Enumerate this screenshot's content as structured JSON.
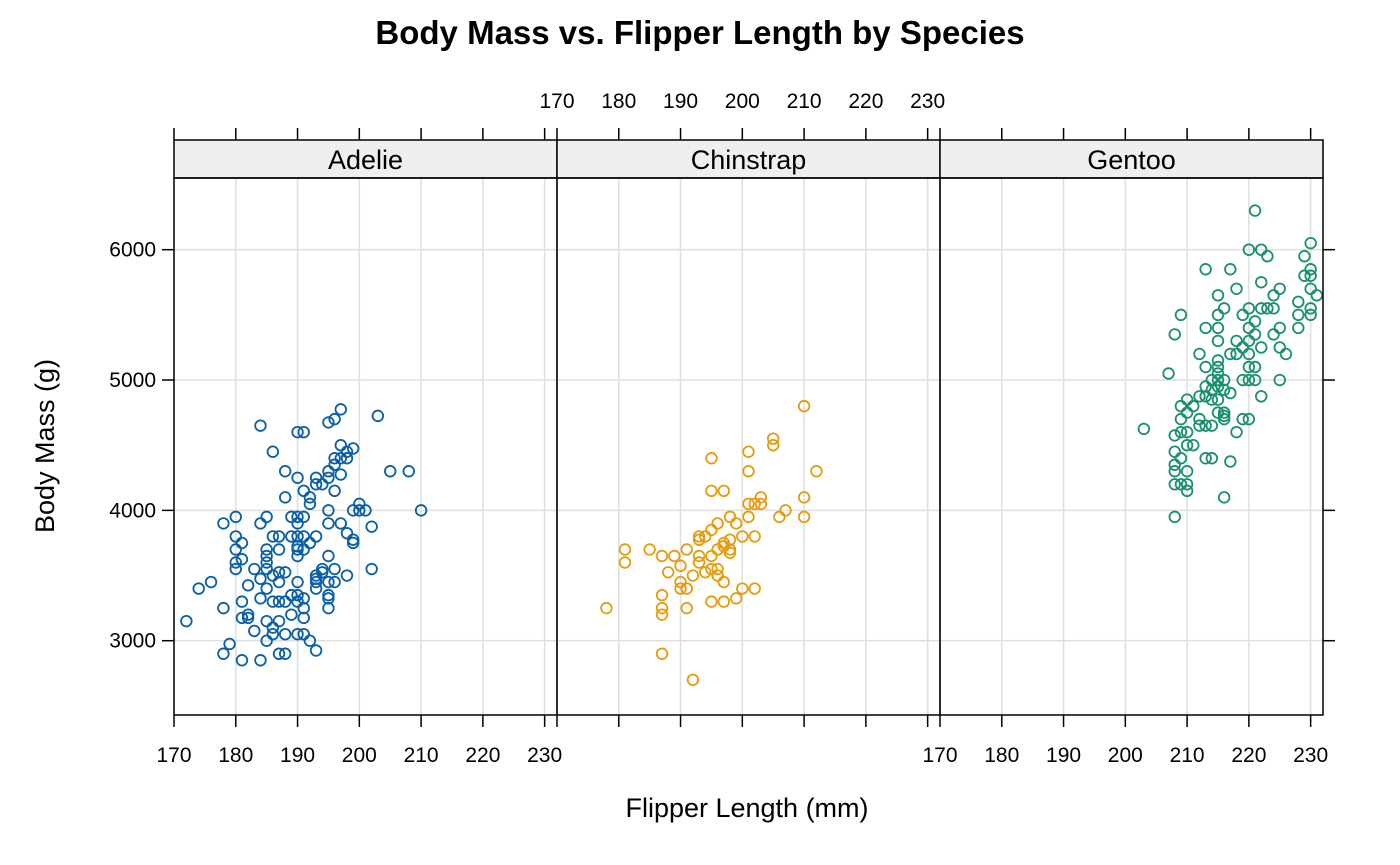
{
  "chart_data": {
    "type": "scatter",
    "title": "Body Mass vs. Flipper Length by Species",
    "xlabel": "Flipper Length (mm)",
    "ylabel": "Body Mass (g)",
    "xlim": [
      170,
      232
    ],
    "ylim": [
      2430,
      6550
    ],
    "x_ticks": [
      170,
      180,
      190,
      200,
      210,
      220,
      230
    ],
    "y_ticks": [
      3000,
      4000,
      5000,
      6000
    ],
    "grid": true,
    "panels": [
      {
        "name": "Adelie",
        "color": "#0a5fa6",
        "points": [
          [
            172,
            3150
          ],
          [
            174,
            3400
          ],
          [
            176,
            3450
          ],
          [
            178,
            3250
          ],
          [
            178,
            2900
          ],
          [
            178,
            3900
          ],
          [
            179,
            2975
          ],
          [
            180,
            3950
          ],
          [
            180,
            3800
          ],
          [
            180,
            3700
          ],
          [
            180,
            3600
          ],
          [
            180,
            3550
          ],
          [
            181,
            3625
          ],
          [
            181,
            3750
          ],
          [
            181,
            3175
          ],
          [
            181,
            3300
          ],
          [
            181,
            2850
          ],
          [
            182,
            3200
          ],
          [
            182,
            3175
          ],
          [
            182,
            3425
          ],
          [
            183,
            3075
          ],
          [
            183,
            3550
          ],
          [
            184,
            4650
          ],
          [
            184,
            3900
          ],
          [
            184,
            3475
          ],
          [
            184,
            3325
          ],
          [
            184,
            2850
          ],
          [
            185,
            3950
          ],
          [
            185,
            3700
          ],
          [
            185,
            3650
          ],
          [
            185,
            3600
          ],
          [
            185,
            3550
          ],
          [
            185,
            3400
          ],
          [
            185,
            3150
          ],
          [
            185,
            3000
          ],
          [
            186,
            4450
          ],
          [
            186,
            3800
          ],
          [
            186,
            3500
          ],
          [
            186,
            3300
          ],
          [
            186,
            3100
          ],
          [
            186,
            3050
          ],
          [
            187,
            3800
          ],
          [
            187,
            3700
          ],
          [
            187,
            3525
          ],
          [
            187,
            3450
          ],
          [
            187,
            3300
          ],
          [
            187,
            3150
          ],
          [
            187,
            2900
          ],
          [
            188,
            4300
          ],
          [
            188,
            4100
          ],
          [
            188,
            3525
          ],
          [
            188,
            3300
          ],
          [
            188,
            3050
          ],
          [
            188,
            2900
          ],
          [
            189,
            3950
          ],
          [
            189,
            3800
          ],
          [
            189,
            3350
          ],
          [
            189,
            3200
          ],
          [
            190,
            4600
          ],
          [
            190,
            4250
          ],
          [
            190,
            3950
          ],
          [
            190,
            3900
          ],
          [
            190,
            3800
          ],
          [
            190,
            3725
          ],
          [
            190,
            3700
          ],
          [
            190,
            3650
          ],
          [
            190,
            3450
          ],
          [
            190,
            3350
          ],
          [
            190,
            3300
          ],
          [
            190,
            3050
          ],
          [
            191,
            4600
          ],
          [
            191,
            4150
          ],
          [
            191,
            3950
          ],
          [
            191,
            3800
          ],
          [
            191,
            3700
          ],
          [
            191,
            3325
          ],
          [
            191,
            3250
          ],
          [
            191,
            3175
          ],
          [
            191,
            3050
          ],
          [
            192,
            4100
          ],
          [
            192,
            4050
          ],
          [
            192,
            3750
          ],
          [
            192,
            3000
          ],
          [
            193,
            4250
          ],
          [
            193,
            4200
          ],
          [
            193,
            3800
          ],
          [
            193,
            3500
          ],
          [
            193,
            3475
          ],
          [
            193,
            3450
          ],
          [
            193,
            3400
          ],
          [
            193,
            2925
          ],
          [
            194,
            4200
          ],
          [
            194,
            3550
          ],
          [
            194,
            3525
          ],
          [
            195,
            4675
          ],
          [
            195,
            4300
          ],
          [
            195,
            4250
          ],
          [
            195,
            4000
          ],
          [
            195,
            3900
          ],
          [
            195,
            3650
          ],
          [
            195,
            3450
          ],
          [
            195,
            3350
          ],
          [
            195,
            3325
          ],
          [
            195,
            3250
          ],
          [
            196,
            4700
          ],
          [
            196,
            4400
          ],
          [
            196,
            4350
          ],
          [
            196,
            4150
          ],
          [
            196,
            3550
          ],
          [
            196,
            3450
          ],
          [
            197,
            4775
          ],
          [
            197,
            4500
          ],
          [
            197,
            4400
          ],
          [
            197,
            4275
          ],
          [
            197,
            3900
          ],
          [
            198,
            4450
          ],
          [
            198,
            4400
          ],
          [
            198,
            3825
          ],
          [
            198,
            3500
          ],
          [
            199,
            4475
          ],
          [
            199,
            4000
          ],
          [
            199,
            3775
          ],
          [
            199,
            3750
          ],
          [
            200,
            4050
          ],
          [
            200,
            4000
          ],
          [
            201,
            4000
          ],
          [
            202,
            3875
          ],
          [
            202,
            3550
          ],
          [
            203,
            4725
          ],
          [
            205,
            4300
          ],
          [
            208,
            4300
          ],
          [
            210,
            4000
          ]
        ]
      },
      {
        "name": "Chinstrap",
        "color": "#e69c0d",
        "points": [
          [
            178,
            3250
          ],
          [
            181,
            3700
          ],
          [
            181,
            3600
          ],
          [
            185,
            3700
          ],
          [
            187,
            3650
          ],
          [
            187,
            3350
          ],
          [
            187,
            3250
          ],
          [
            187,
            3200
          ],
          [
            187,
            2900
          ],
          [
            188,
            3525
          ],
          [
            189,
            3650
          ],
          [
            190,
            3575
          ],
          [
            190,
            3450
          ],
          [
            190,
            3400
          ],
          [
            191,
            3700
          ],
          [
            191,
            3400
          ],
          [
            191,
            3250
          ],
          [
            192,
            3500
          ],
          [
            192,
            2700
          ],
          [
            193,
            3800
          ],
          [
            193,
            3775
          ],
          [
            193,
            3650
          ],
          [
            193,
            3600
          ],
          [
            194,
            3525
          ],
          [
            194,
            3800
          ],
          [
            195,
            4400
          ],
          [
            195,
            4150
          ],
          [
            195,
            3850
          ],
          [
            195,
            3650
          ],
          [
            195,
            3550
          ],
          [
            195,
            3300
          ],
          [
            196,
            3900
          ],
          [
            196,
            3700
          ],
          [
            196,
            3550
          ],
          [
            196,
            3500
          ],
          [
            197,
            4150
          ],
          [
            197,
            3750
          ],
          [
            197,
            3725
          ],
          [
            197,
            3450
          ],
          [
            197,
            3300
          ],
          [
            198,
            3775
          ],
          [
            198,
            3700
          ],
          [
            198,
            3675
          ],
          [
            198,
            3950
          ],
          [
            199,
            3900
          ],
          [
            199,
            3325
          ],
          [
            200,
            3800
          ],
          [
            200,
            3400
          ],
          [
            201,
            4450
          ],
          [
            201,
            4300
          ],
          [
            201,
            4050
          ],
          [
            201,
            3950
          ],
          [
            202,
            4050
          ],
          [
            202,
            3800
          ],
          [
            202,
            3400
          ],
          [
            203,
            4100
          ],
          [
            203,
            4050
          ],
          [
            205,
            4550
          ],
          [
            205,
            4500
          ],
          [
            206,
            3950
          ],
          [
            207,
            4000
          ],
          [
            210,
            4800
          ],
          [
            210,
            4100
          ],
          [
            210,
            3950
          ],
          [
            212,
            4300
          ]
        ]
      },
      {
        "name": "Gentoo",
        "color": "#1a9070",
        "points": [
          [
            203,
            4625
          ],
          [
            207,
            5050
          ],
          [
            208,
            5350
          ],
          [
            208,
            4575
          ],
          [
            208,
            4450
          ],
          [
            208,
            4350
          ],
          [
            208,
            4300
          ],
          [
            208,
            4200
          ],
          [
            208,
            3950
          ],
          [
            209,
            5500
          ],
          [
            209,
            4800
          ],
          [
            209,
            4700
          ],
          [
            209,
            4600
          ],
          [
            209,
            4400
          ],
          [
            209,
            4200
          ],
          [
            210,
            4850
          ],
          [
            210,
            4750
          ],
          [
            210,
            4600
          ],
          [
            210,
            4500
          ],
          [
            210,
            4300
          ],
          [
            210,
            4200
          ],
          [
            210,
            4150
          ],
          [
            211,
            4800
          ],
          [
            211,
            4500
          ],
          [
            212,
            5200
          ],
          [
            212,
            4875
          ],
          [
            212,
            4700
          ],
          [
            212,
            4650
          ],
          [
            213,
            5850
          ],
          [
            213,
            5400
          ],
          [
            213,
            5100
          ],
          [
            213,
            4950
          ],
          [
            213,
            4875
          ],
          [
            213,
            4650
          ],
          [
            213,
            4400
          ],
          [
            214,
            5000
          ],
          [
            214,
            4925
          ],
          [
            214,
            4850
          ],
          [
            214,
            4650
          ],
          [
            214,
            4400
          ],
          [
            215,
            5650
          ],
          [
            215,
            5500
          ],
          [
            215,
            5400
          ],
          [
            215,
            5300
          ],
          [
            215,
            5150
          ],
          [
            215,
            5100
          ],
          [
            215,
            5050
          ],
          [
            215,
            5000
          ],
          [
            215,
            4950
          ],
          [
            215,
            4850
          ],
          [
            215,
            4750
          ],
          [
            216,
            5550
          ],
          [
            216,
            5000
          ],
          [
            216,
            4925
          ],
          [
            216,
            4750
          ],
          [
            216,
            4725
          ],
          [
            216,
            4700
          ],
          [
            216,
            4100
          ],
          [
            217,
            5850
          ],
          [
            217,
            5200
          ],
          [
            217,
            4900
          ],
          [
            217,
            4375
          ],
          [
            218,
            5700
          ],
          [
            218,
            5300
          ],
          [
            218,
            5200
          ],
          [
            218,
            4600
          ],
          [
            219,
            5500
          ],
          [
            219,
            5250
          ],
          [
            219,
            5000
          ],
          [
            219,
            4700
          ],
          [
            220,
            6000
          ],
          [
            220,
            5550
          ],
          [
            220,
            5400
          ],
          [
            220,
            5300
          ],
          [
            220,
            5200
          ],
          [
            220,
            5100
          ],
          [
            220,
            5000
          ],
          [
            220,
            4700
          ],
          [
            221,
            6300
          ],
          [
            221,
            5450
          ],
          [
            221,
            5350
          ],
          [
            221,
            5100
          ],
          [
            221,
            5000
          ],
          [
            222,
            6000
          ],
          [
            222,
            5750
          ],
          [
            222,
            5550
          ],
          [
            222,
            5250
          ],
          [
            222,
            4875
          ],
          [
            223,
            5950
          ],
          [
            223,
            5550
          ],
          [
            224,
            5650
          ],
          [
            224,
            5550
          ],
          [
            224,
            5350
          ],
          [
            225,
            5700
          ],
          [
            225,
            5400
          ],
          [
            225,
            5250
          ],
          [
            225,
            5000
          ],
          [
            226,
            5200
          ],
          [
            228,
            5600
          ],
          [
            228,
            5500
          ],
          [
            228,
            5400
          ],
          [
            229,
            5950
          ],
          [
            229,
            5800
          ],
          [
            230,
            6050
          ],
          [
            230,
            5850
          ],
          [
            230,
            5800
          ],
          [
            230,
            5700
          ],
          [
            230,
            5550
          ],
          [
            230,
            5500
          ],
          [
            231,
            5650
          ]
        ]
      }
    ]
  }
}
